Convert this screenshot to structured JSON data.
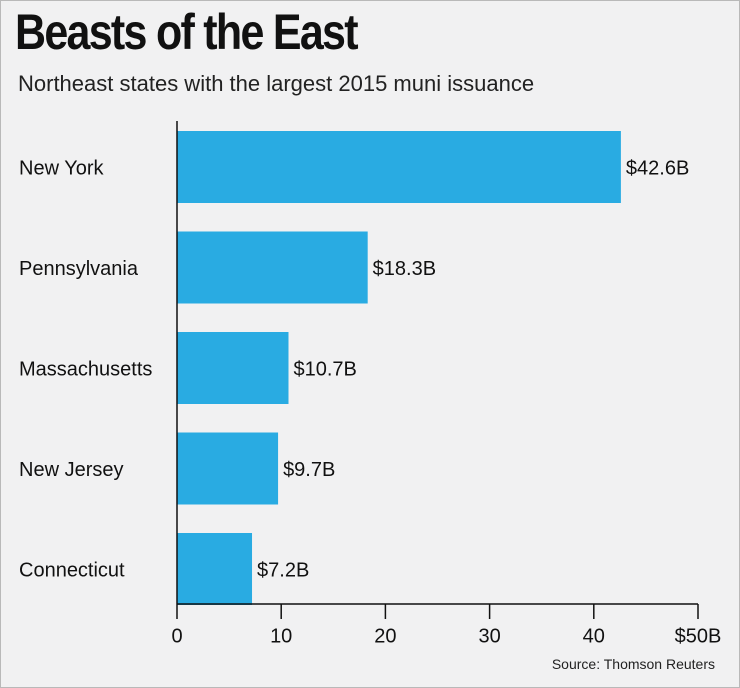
{
  "chart_data": {
    "type": "bar",
    "orientation": "horizontal",
    "title": "Beasts of the East",
    "subtitle": "Northeast states with the largest 2015 muni issuance",
    "source": "Source: Thomson Reuters",
    "categories": [
      "New York",
      "Pennsylvania",
      "Massachusetts",
      "New Jersey",
      "Connecticut"
    ],
    "values": [
      42.6,
      18.3,
      10.7,
      9.7,
      7.2
    ],
    "value_labels": [
      "$42.6B",
      "$18.3B",
      "$10.7B",
      "$9.7B",
      "$7.2B"
    ],
    "xlim": [
      0,
      50
    ],
    "x_ticks": [
      0,
      10,
      20,
      30,
      40,
      50
    ],
    "x_tick_labels": [
      "0",
      "10",
      "20",
      "30",
      "40",
      "$50B"
    ],
    "grid": false,
    "bar_color": "#29abe2"
  }
}
